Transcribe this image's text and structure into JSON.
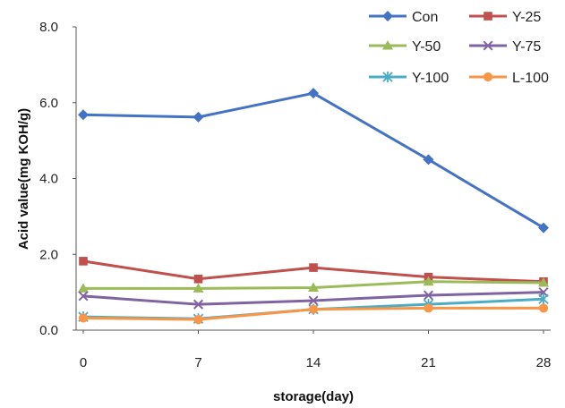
{
  "chart_data": {
    "type": "line",
    "x": [
      0,
      7,
      14,
      21,
      28
    ],
    "xticks": [
      "0",
      "7",
      "14",
      "21",
      "28"
    ],
    "yticks": [
      "0.0",
      "2.0",
      "4.0",
      "6.0",
      "8.0"
    ],
    "xlabel": "storage(day)",
    "ylabel": "Acid value(mg KOH/g)",
    "ylim": [
      0,
      8
    ],
    "grid": false,
    "legend_position": "top-right",
    "series": [
      {
        "name": "Con",
        "color": "#4472C4",
        "marker": "diamond",
        "values": [
          5.68,
          5.62,
          6.25,
          4.5,
          2.7
        ]
      },
      {
        "name": "Y-25",
        "color": "#C0504D",
        "marker": "square",
        "values": [
          1.82,
          1.35,
          1.65,
          1.4,
          1.28
        ]
      },
      {
        "name": "Y-50",
        "color": "#9BBB59",
        "marker": "triangle",
        "values": [
          1.1,
          1.1,
          1.12,
          1.28,
          1.25
        ]
      },
      {
        "name": "Y-75",
        "color": "#8064A2",
        "marker": "x",
        "values": [
          0.9,
          0.68,
          0.78,
          0.92,
          1.0
        ]
      },
      {
        "name": "Y-100",
        "color": "#4BACC6",
        "marker": "star",
        "values": [
          0.35,
          0.3,
          0.55,
          0.68,
          0.82
        ]
      },
      {
        "name": "L-100",
        "color": "#F79646",
        "marker": "circle",
        "values": [
          0.32,
          0.28,
          0.55,
          0.58,
          0.58
        ]
      }
    ]
  }
}
